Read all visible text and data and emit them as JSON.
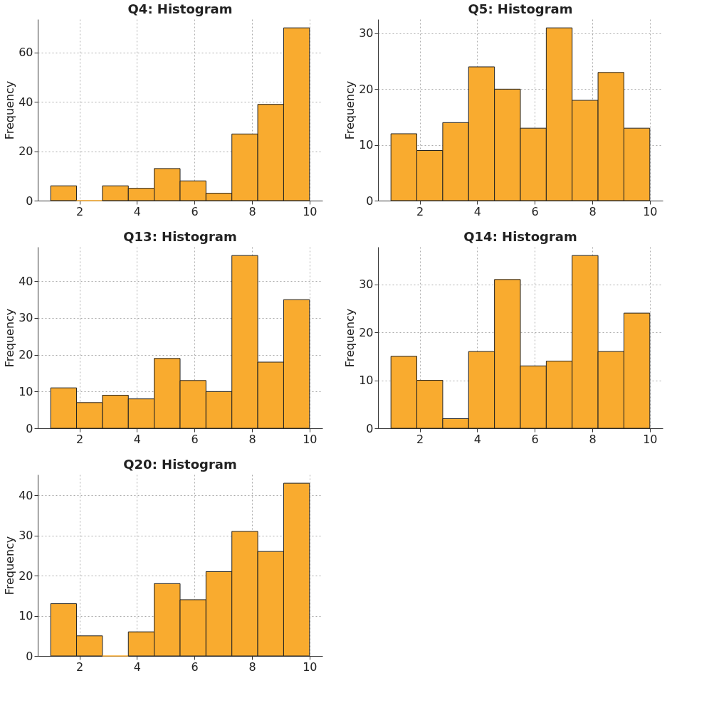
{
  "chart_data": [
    {
      "type": "histogram",
      "title": "Q4: Histogram",
      "ylabel": "Frequency",
      "color": "#f9ab2f",
      "bins": [
        1,
        1.9,
        2.8,
        3.7,
        4.6,
        5.5,
        6.4,
        7.3,
        8.2,
        9.1,
        10
      ],
      "values": [
        6,
        0,
        6,
        5,
        13,
        8,
        3,
        27,
        39,
        70
      ],
      "xlim": [
        0.55,
        10.45
      ],
      "xticks": [
        2,
        4,
        6,
        8,
        10
      ],
      "ylim": [
        0,
        73.5
      ],
      "yticks": [
        0,
        20,
        40,
        60
      ],
      "grid": true
    },
    {
      "type": "histogram",
      "title": "Q5: Histogram",
      "ylabel": "Frequency",
      "color": "#f9ab2f",
      "bins": [
        1,
        1.9,
        2.8,
        3.7,
        4.6,
        5.5,
        6.4,
        7.3,
        8.2,
        9.1,
        10
      ],
      "values": [
        12,
        9,
        14,
        24,
        20,
        13,
        31,
        18,
        23,
        13
      ],
      "xlim": [
        0.55,
        10.45
      ],
      "xticks": [
        2,
        4,
        6,
        8,
        10
      ],
      "ylim": [
        0,
        32.55
      ],
      "yticks": [
        0,
        10,
        20,
        30
      ],
      "grid": true
    },
    {
      "type": "histogram",
      "title": "Q13: Histogram",
      "ylabel": "Frequency",
      "color": "#f9ab2f",
      "bins": [
        1,
        1.9,
        2.8,
        3.7,
        4.6,
        5.5,
        6.4,
        7.3,
        8.2,
        9.1,
        10
      ],
      "values": [
        11,
        7,
        9,
        8,
        19,
        13,
        10,
        47,
        18,
        35
      ],
      "xlim": [
        0.55,
        10.45
      ],
      "xticks": [
        2,
        4,
        6,
        8,
        10
      ],
      "ylim": [
        0,
        49.35
      ],
      "yticks": [
        0,
        10,
        20,
        30,
        40
      ],
      "grid": true
    },
    {
      "type": "histogram",
      "title": "Q14: Histogram",
      "ylabel": "Frequency",
      "color": "#f9ab2f",
      "bins": [
        1,
        1.9,
        2.8,
        3.7,
        4.6,
        5.5,
        6.4,
        7.3,
        8.2,
        9.1,
        10
      ],
      "values": [
        15,
        10,
        2,
        16,
        31,
        13,
        14,
        36,
        16,
        24
      ],
      "xlim": [
        0.55,
        10.45
      ],
      "xticks": [
        2,
        4,
        6,
        8,
        10
      ],
      "ylim": [
        0,
        37.8
      ],
      "yticks": [
        0,
        10,
        20,
        30
      ],
      "grid": true
    },
    {
      "type": "histogram",
      "title": "Q20: Histogram",
      "ylabel": "Frequency",
      "color": "#f9ab2f",
      "bins": [
        1,
        1.9,
        2.8,
        3.7,
        4.6,
        5.5,
        6.4,
        7.3,
        8.2,
        9.1,
        10
      ],
      "values": [
        13,
        5,
        0,
        6,
        18,
        14,
        21,
        31,
        26,
        43
      ],
      "xlim": [
        0.55,
        10.45
      ],
      "xticks": [
        2,
        4,
        6,
        8,
        10
      ],
      "ylim": [
        0,
        45.15
      ],
      "yticks": [
        0,
        10,
        20,
        30,
        40
      ],
      "grid": true
    }
  ]
}
